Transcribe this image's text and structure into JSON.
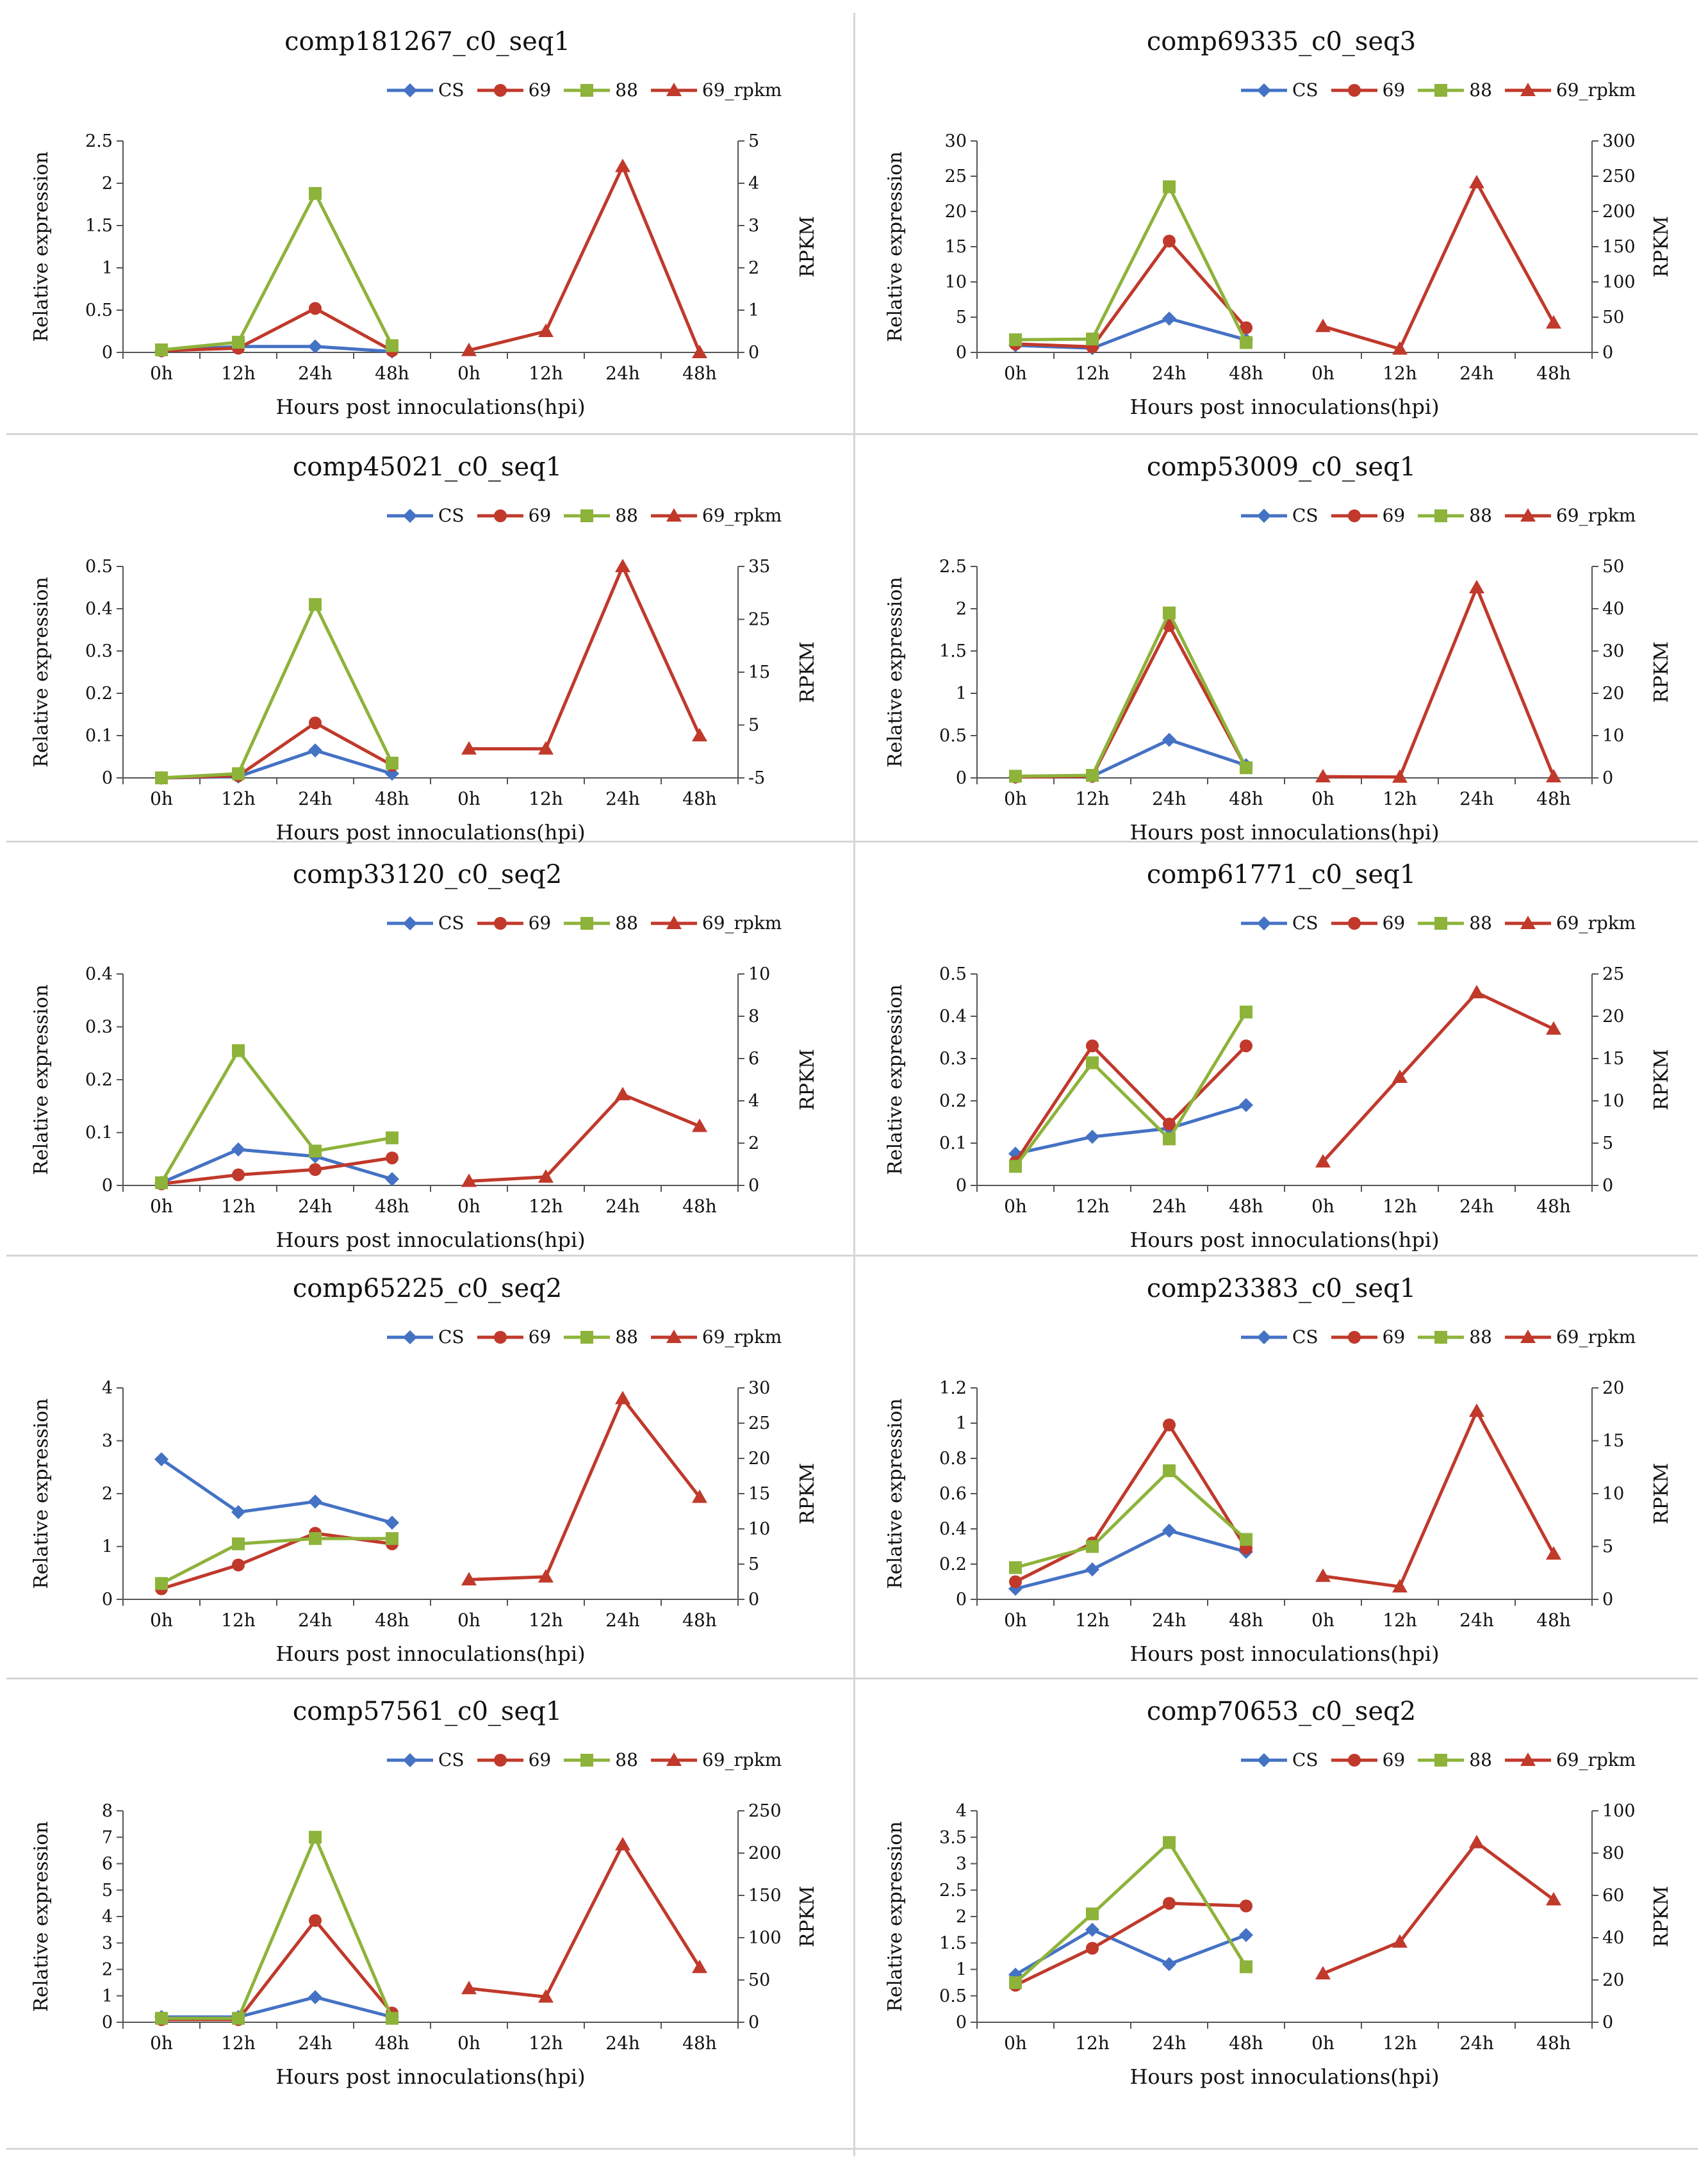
{
  "figure": {
    "x_axis_label": "Hours post innoculations(hpi)",
    "left_axis_label": "Relative expression",
    "right_axis_label": "RPKM",
    "legend": [
      "CS",
      "69",
      "88",
      "69_rpkm"
    ],
    "colors": {
      "CS": "#4472C4",
      "69": "#C0392B",
      "88": "#8DB33A",
      "69_rpkm": "#C0392B"
    }
  },
  "chart_data": [
    {
      "type": "line",
      "title": "comp181267_c0_seq1",
      "categories_left": [
        "0h",
        "12h",
        "24h",
        "48h"
      ],
      "categories_right": [
        "0h",
        "12h",
        "24h",
        "48h"
      ],
      "xlabel": "Hours post innoculations(hpi)",
      "ylabel_left": "Relative expression",
      "ylabel_right": "RPKM",
      "ylim_left": [
        0,
        2.5
      ],
      "yticks_left": [
        "0",
        "0.5",
        "1",
        "1.5",
        "2",
        "2.5"
      ],
      "ylim_right": [
        0,
        5
      ],
      "yticks_right": [
        "0",
        "1",
        "2",
        "3",
        "4",
        "5"
      ],
      "series": [
        {
          "name": "CS",
          "values": [
            0.02,
            0.07,
            0.07,
            0.01
          ]
        },
        {
          "name": "69",
          "values": [
            0.02,
            0.05,
            0.52,
            0.02
          ]
        },
        {
          "name": "88",
          "values": [
            0.03,
            0.12,
            1.88,
            0.08
          ]
        }
      ],
      "rpkm": {
        "name": "69_rpkm",
        "values": [
          0.05,
          0.5,
          4.4,
          0.0
        ]
      }
    },
    {
      "type": "line",
      "title": "comp69335_c0_seq3",
      "categories_left": [
        "0h",
        "12h",
        "24h",
        "48h"
      ],
      "categories_right": [
        "0h",
        "12h",
        "24h",
        "48h"
      ],
      "xlabel": "Hours post innoculations(hpi)",
      "ylabel_left": "Relative expression",
      "ylabel_right": "RPKM",
      "ylim_left": [
        0,
        30
      ],
      "yticks_left": [
        "0",
        "5",
        "10",
        "15",
        "20",
        "25",
        "30"
      ],
      "ylim_right": [
        0,
        300
      ],
      "yticks_right": [
        "0",
        "50",
        "100",
        "150",
        "200",
        "250",
        "300"
      ],
      "series": [
        {
          "name": "CS",
          "values": [
            1.0,
            0.6,
            4.8,
            1.8
          ]
        },
        {
          "name": "69",
          "values": [
            1.2,
            0.8,
            15.8,
            3.5
          ]
        },
        {
          "name": "88",
          "values": [
            1.8,
            1.9,
            23.5,
            1.4
          ]
        }
      ],
      "rpkm": {
        "name": "69_rpkm",
        "values": [
          37,
          5,
          241,
          42
        ]
      }
    },
    {
      "type": "line",
      "title": "comp45021_c0_seq1",
      "categories_left": [
        "0h",
        "12h",
        "24h",
        "48h"
      ],
      "categories_right": [
        "0h",
        "12h",
        "24h",
        "48h"
      ],
      "xlabel": "Hours post innoculations(hpi)",
      "ylabel_left": "Relative expression",
      "ylabel_right": "RPKM",
      "ylim_left": [
        0,
        0.5
      ],
      "yticks_left": [
        "0",
        "0.1",
        "0.2",
        "0.3",
        "0.4",
        "0.5"
      ],
      "ylim_right": [
        -5,
        35
      ],
      "yticks_right": [
        "-5",
        "5",
        "15",
        "25",
        "35"
      ],
      "series": [
        {
          "name": "CS",
          "values": [
            0.0,
            0.003,
            0.065,
            0.01
          ]
        },
        {
          "name": "69",
          "values": [
            0.0,
            0.005,
            0.13,
            0.03
          ]
        },
        {
          "name": "88",
          "values": [
            0.0,
            0.01,
            0.41,
            0.035
          ]
        }
      ],
      "rpkm": {
        "name": "69_rpkm",
        "values": [
          0.5,
          0.5,
          35,
          3
        ]
      }
    },
    {
      "type": "line",
      "title": "comp53009_c0_seq1",
      "categories_left": [
        "0h",
        "12h",
        "24h",
        "48h"
      ],
      "categories_right": [
        "0h",
        "12h",
        "24h",
        "48h"
      ],
      "xlabel": "Hours post innoculations(hpi)",
      "ylabel_left": "Relative expression",
      "ylabel_right": "RPKM",
      "ylim_left": [
        0,
        2.5
      ],
      "yticks_left": [
        "0",
        "0.5",
        "1",
        "1.5",
        "2",
        "2.5"
      ],
      "ylim_right": [
        0,
        50
      ],
      "yticks_right": [
        "0",
        "10",
        "20",
        "30",
        "40",
        "50"
      ],
      "series": [
        {
          "name": "CS",
          "values": [
            0.01,
            0.02,
            0.45,
            0.15
          ]
        },
        {
          "name": "69",
          "values": [
            0.01,
            0.02,
            1.8,
            0.12
          ]
        },
        {
          "name": "88",
          "values": [
            0.02,
            0.03,
            1.95,
            0.12
          ]
        }
      ],
      "rpkm": {
        "name": "69_rpkm",
        "values": [
          0.3,
          0.2,
          45,
          0.3
        ]
      }
    },
    {
      "type": "line",
      "title": "comp33120_c0_seq2",
      "categories_left": [
        "0h",
        "12h",
        "24h",
        "48h"
      ],
      "categories_right": [
        "0h",
        "12h",
        "24h",
        "48h"
      ],
      "xlabel": "Hours post innoculations(hpi)",
      "ylabel_left": "Relative expression",
      "ylabel_right": "RPKM",
      "ylim_left": [
        0,
        0.4
      ],
      "yticks_left": [
        "0",
        "0.1",
        "0.2",
        "0.3",
        "0.4"
      ],
      "ylim_right": [
        0,
        10
      ],
      "yticks_right": [
        "0",
        "2",
        "4",
        "6",
        "8",
        "10"
      ],
      "series": [
        {
          "name": "CS",
          "values": [
            0.005,
            0.068,
            0.055,
            0.012
          ]
        },
        {
          "name": "69",
          "values": [
            0.003,
            0.02,
            0.03,
            0.052
          ]
        },
        {
          "name": "88",
          "values": [
            0.005,
            0.255,
            0.065,
            0.09
          ]
        }
      ],
      "rpkm": {
        "name": "69_rpkm",
        "values": [
          0.2,
          0.4,
          4.3,
          2.8
        ]
      }
    },
    {
      "type": "line",
      "title": "comp61771_c0_seq1",
      "categories_left": [
        "0h",
        "12h",
        "24h",
        "48h"
      ],
      "categories_right": [
        "0h",
        "12h",
        "24h",
        "48h"
      ],
      "xlabel": "Hours post innoculations(hpi)",
      "ylabel_left": "Relative expression",
      "ylabel_right": "RPKM",
      "ylim_left": [
        0,
        0.5
      ],
      "yticks_left": [
        "0",
        "0.1",
        "0.2",
        "0.3",
        "0.4",
        "0.5"
      ],
      "ylim_right": [
        0,
        25
      ],
      "yticks_right": [
        "0",
        "5",
        "10",
        "15",
        "20",
        "25"
      ],
      "series": [
        {
          "name": "CS",
          "values": [
            0.075,
            0.115,
            0.135,
            0.19
          ]
        },
        {
          "name": "69",
          "values": [
            0.055,
            0.33,
            0.145,
            0.33
          ]
        },
        {
          "name": "88",
          "values": [
            0.045,
            0.29,
            0.11,
            0.41
          ]
        }
      ],
      "rpkm": {
        "name": "69_rpkm",
        "values": [
          2.8,
          12.8,
          22.8,
          18.5
        ]
      }
    },
    {
      "type": "line",
      "title": "comp65225_c0_seq2",
      "categories_left": [
        "0h",
        "12h",
        "24h",
        "48h"
      ],
      "categories_right": [
        "0h",
        "12h",
        "24h",
        "48h"
      ],
      "xlabel": "Hours post innoculations(hpi)",
      "ylabel_left": "Relative expression",
      "ylabel_right": "RPKM",
      "ylim_left": [
        0,
        4
      ],
      "yticks_left": [
        "0",
        "1",
        "2",
        "3",
        "4"
      ],
      "ylim_right": [
        0,
        30
      ],
      "yticks_right": [
        "0",
        "5",
        "10",
        "15",
        "20",
        "25",
        "30"
      ],
      "series": [
        {
          "name": "CS",
          "values": [
            2.65,
            1.65,
            1.85,
            1.45
          ]
        },
        {
          "name": "69",
          "values": [
            0.2,
            0.65,
            1.25,
            1.05
          ]
        },
        {
          "name": "88",
          "values": [
            0.3,
            1.05,
            1.15,
            1.15
          ]
        }
      ],
      "rpkm": {
        "name": "69_rpkm",
        "values": [
          2.8,
          3.2,
          28.5,
          14.5
        ]
      }
    },
    {
      "type": "line",
      "title": "comp23383_c0_seq1",
      "categories_left": [
        "0h",
        "12h",
        "24h",
        "48h"
      ],
      "categories_right": [
        "0h",
        "12h",
        "24h",
        "48h"
      ],
      "xlabel": "Hours post innoculations(hpi)",
      "ylabel_left": "Relative expression",
      "ylabel_right": "RPKM",
      "ylim_left": [
        0,
        1.2
      ],
      "yticks_left": [
        "0",
        "0.2",
        "0.4",
        "0.6",
        "0.8",
        "1",
        "1.2"
      ],
      "ylim_right": [
        0,
        20
      ],
      "yticks_right": [
        "0",
        "5",
        "10",
        "15",
        "20"
      ],
      "series": [
        {
          "name": "CS",
          "values": [
            0.06,
            0.17,
            0.39,
            0.27
          ]
        },
        {
          "name": "69",
          "values": [
            0.1,
            0.32,
            0.99,
            0.29
          ]
        },
        {
          "name": "88",
          "values": [
            0.18,
            0.3,
            0.73,
            0.34
          ]
        }
      ],
      "rpkm": {
        "name": "69_rpkm",
        "values": [
          2.2,
          1.2,
          17.8,
          4.3
        ]
      }
    },
    {
      "type": "line",
      "title": "comp57561_c0_seq1",
      "categories_left": [
        "0h",
        "12h",
        "24h",
        "48h"
      ],
      "categories_right": [
        "0h",
        "12h",
        "24h",
        "48h"
      ],
      "xlabel": "Hours post innoculations(hpi)",
      "ylabel_left": "Relative expression",
      "ylabel_right": "RPKM",
      "ylim_left": [
        0,
        8
      ],
      "yticks_left": [
        "0",
        "1",
        "2",
        "3",
        "4",
        "5",
        "6",
        "7",
        "8"
      ],
      "ylim_right": [
        0,
        250
      ],
      "yticks_right": [
        "0",
        "50",
        "100",
        "150",
        "200",
        "250"
      ],
      "series": [
        {
          "name": "CS",
          "values": [
            0.2,
            0.2,
            0.95,
            0.2
          ]
        },
        {
          "name": "69",
          "values": [
            0.1,
            0.1,
            3.85,
            0.35
          ]
        },
        {
          "name": "88",
          "values": [
            0.15,
            0.15,
            7.0,
            0.15
          ]
        }
      ],
      "rpkm": {
        "name": "69_rpkm",
        "values": [
          40,
          30,
          210,
          65
        ]
      }
    },
    {
      "type": "line",
      "title": "comp70653_c0_seq2",
      "categories_left": [
        "0h",
        "12h",
        "24h",
        "48h"
      ],
      "categories_right": [
        "0h",
        "12h",
        "24h",
        "48h"
      ],
      "xlabel": "Hours post innoculations(hpi)",
      "ylabel_left": "Relative expression",
      "ylabel_right": "RPKM",
      "ylim_left": [
        0,
        4
      ],
      "yticks_left": [
        "0",
        "0.5",
        "1",
        "1.5",
        "2",
        "2.5",
        "3",
        "3.5",
        "4"
      ],
      "ylim_right": [
        0,
        100
      ],
      "yticks_right": [
        "0",
        "20",
        "40",
        "60",
        "80",
        "100"
      ],
      "series": [
        {
          "name": "CS",
          "values": [
            0.9,
            1.75,
            1.1,
            1.65
          ]
        },
        {
          "name": "69",
          "values": [
            0.7,
            1.4,
            2.25,
            2.2
          ]
        },
        {
          "name": "88",
          "values": [
            0.75,
            2.05,
            3.4,
            1.05
          ]
        }
      ],
      "rpkm": {
        "name": "69_rpkm",
        "values": [
          23,
          38,
          85,
          58
        ]
      }
    }
  ]
}
